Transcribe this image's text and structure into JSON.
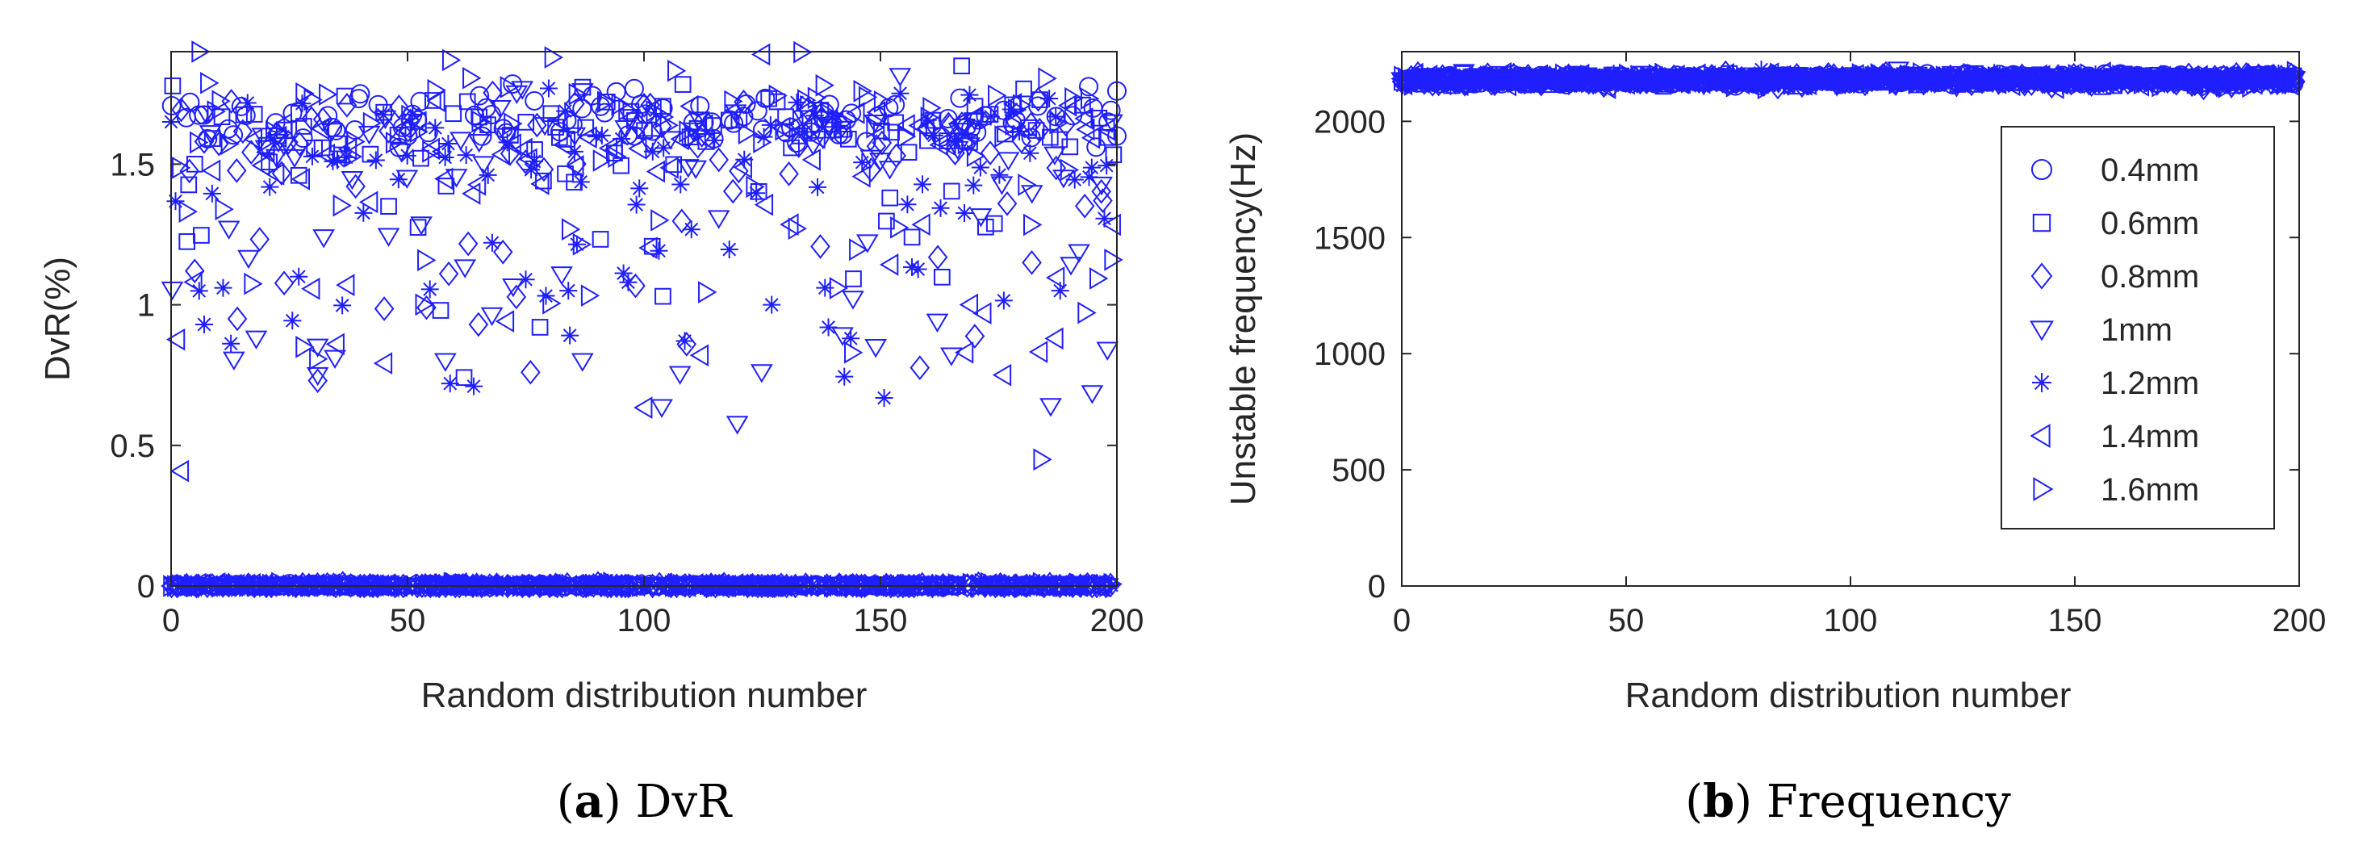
{
  "colors": {
    "marker": "#1f1fff",
    "axis": "#262626",
    "background": "#ffffff"
  },
  "charts": [
    {
      "caption": {
        "label": "a",
        "text": "DvR"
      },
      "chart_data": {
        "type": "scatter",
        "xlabel": "Random distribution number",
        "ylabel": "DvR(%)",
        "xlim": [
          0,
          200
        ],
        "ylim": [
          0,
          1.9
        ],
        "xticks": [
          0,
          50,
          100,
          150,
          200
        ],
        "yticks": [
          0,
          0.5,
          1,
          1.5
        ],
        "ytick_labels": [
          "0",
          "0.5",
          "1",
          "1.5"
        ],
        "grid": false,
        "legend": "none",
        "points_per_series": 200,
        "series": [
          {
            "name": "0.4mm",
            "marker": "circle",
            "clusters": [
              {
                "fraction": 0.45,
                "mean": 1.66,
                "sd": 0.05
              },
              {
                "fraction": 0.55,
                "mean": 0.0,
                "sd": 0.004
              }
            ],
            "sample_points": [
              [
                4,
                1.72
              ],
              [
                40,
                1.75
              ],
              [
                98,
                1.6
              ],
              [
                147,
                1.58
              ],
              [
                200,
                1.76
              ],
              [
                200,
                1.6
              ]
            ]
          },
          {
            "name": "0.6mm",
            "marker": "square",
            "clusters": [
              {
                "fraction": 0.38,
                "mean": 1.62,
                "sd": 0.07
              },
              {
                "fraction": 0.08,
                "mean": 1.25,
                "sd": 0.15
              },
              {
                "fraction": 0.54,
                "mean": 0.0,
                "sd": 0.004
              }
            ],
            "sample_points": [
              [
                5,
                1.5
              ],
              [
                27,
                1.46
              ],
              [
                46,
                1.35
              ],
              [
                57,
                0.98
              ],
              [
                78,
                0.92
              ],
              [
                104,
                1.03
              ],
              [
                152,
                1.38
              ]
            ]
          },
          {
            "name": "0.8mm",
            "marker": "diamond",
            "clusters": [
              {
                "fraction": 0.32,
                "mean": 1.6,
                "sd": 0.08
              },
              {
                "fraction": 0.13,
                "mean": 1.15,
                "sd": 0.22
              },
              {
                "fraction": 0.55,
                "mean": 0.0,
                "sd": 0.004
              }
            ],
            "sample_points": [
              [
                5,
                1.12
              ],
              [
                14,
                0.95
              ],
              [
                31,
                0.73
              ],
              [
                54,
                0.99
              ],
              [
                65,
                0.93
              ],
              [
                76,
                0.76
              ],
              [
                109,
                0.86
              ],
              [
                182,
                1.15
              ],
              [
                197,
                1.37
              ]
            ]
          },
          {
            "name": "1mm",
            "marker": "triangle-down",
            "clusters": [
              {
                "fraction": 0.3,
                "mean": 1.58,
                "sd": 0.1
              },
              {
                "fraction": 0.15,
                "mean": 1.05,
                "sd": 0.25
              },
              {
                "fraction": 0.55,
                "mean": 0.0,
                "sd": 0.004
              }
            ],
            "sample_points": [
              [
                18,
                0.88
              ],
              [
                31,
                0.75
              ],
              [
                58,
                0.8
              ],
              [
                87,
                0.8
              ],
              [
                149,
                0.85
              ],
              [
                165,
                0.82
              ],
              [
                186,
                0.64
              ],
              [
                198,
                0.84
              ]
            ]
          },
          {
            "name": "1.2mm",
            "marker": "asterisk",
            "clusters": [
              {
                "fraction": 0.3,
                "mean": 1.55,
                "sd": 0.12
              },
              {
                "fraction": 0.14,
                "mean": 1.05,
                "sd": 0.2
              },
              {
                "fraction": 0.56,
                "mean": 0.0,
                "sd": 0.004
              }
            ],
            "sample_points": [
              [
                7,
                0.93
              ],
              [
                11,
                1.06
              ],
              [
                27,
                1.1
              ],
              [
                59,
                0.72
              ],
              [
                64,
                0.71
              ],
              [
                75,
                1.09
              ],
              [
                84,
                1.05
              ],
              [
                127,
                1.0
              ],
              [
                139,
                0.92
              ],
              [
                188,
                1.05
              ]
            ]
          },
          {
            "name": "1.4mm",
            "marker": "triangle-left",
            "clusters": [
              {
                "fraction": 0.31,
                "mean": 1.6,
                "sd": 0.1
              },
              {
                "fraction": 0.14,
                "mean": 1.1,
                "sd": 0.22
              },
              {
                "fraction": 0.55,
                "mean": 0.0,
                "sd": 0.004
              }
            ],
            "sample_points": [
              [
                35,
                0.86
              ],
              [
                112,
                0.82
              ],
              [
                168,
                0.83
              ],
              [
                176,
                0.75
              ],
              [
                187,
                0.88
              ],
              [
                125,
                1.89
              ]
            ]
          },
          {
            "name": "1.6mm",
            "marker": "triangle-right",
            "clusters": [
              {
                "fraction": 0.32,
                "mean": 1.65,
                "sd": 0.1
              },
              {
                "fraction": 0.13,
                "mean": 1.12,
                "sd": 0.22
              },
              {
                "fraction": 0.55,
                "mean": 0.0,
                "sd": 0.004
              }
            ],
            "sample_points": [
              [
                6,
                1.9
              ],
              [
                59,
                1.87
              ],
              [
                28,
                0.85
              ],
              [
                144,
                0.83
              ],
              [
                184,
                0.45
              ],
              [
                199,
                1.16
              ]
            ]
          }
        ]
      }
    },
    {
      "caption": {
        "label": "b",
        "text": "Frequency"
      },
      "chart_data": {
        "type": "scatter",
        "xlabel": "Random distribution number",
        "ylabel": "Unstable frequency(Hz)",
        "xlim": [
          0,
          200
        ],
        "ylim": [
          0,
          2300
        ],
        "xticks": [
          0,
          50,
          100,
          150,
          200
        ],
        "yticks": [
          0,
          500,
          1000,
          1500,
          2000
        ],
        "ytick_labels": [
          "0",
          "500",
          "1000",
          "1500",
          "2000"
        ],
        "grid": false,
        "legend": "right",
        "points_per_series": 200,
        "series": [
          {
            "name": "0.4mm",
            "marker": "circle",
            "clusters": [
              {
                "fraction": 1.0,
                "mean": 2180,
                "sd": 12
              }
            ]
          },
          {
            "name": "0.6mm",
            "marker": "square",
            "clusters": [
              {
                "fraction": 1.0,
                "mean": 2180,
                "sd": 12
              }
            ]
          },
          {
            "name": "0.8mm",
            "marker": "diamond",
            "clusters": [
              {
                "fraction": 1.0,
                "mean": 2180,
                "sd": 12
              }
            ]
          },
          {
            "name": "1mm",
            "marker": "triangle-down",
            "clusters": [
              {
                "fraction": 1.0,
                "mean": 2180,
                "sd": 12
              }
            ]
          },
          {
            "name": "1.2mm",
            "marker": "asterisk",
            "clusters": [
              {
                "fraction": 1.0,
                "mean": 2180,
                "sd": 12
              }
            ]
          },
          {
            "name": "1.4mm",
            "marker": "triangle-left",
            "clusters": [
              {
                "fraction": 1.0,
                "mean": 2180,
                "sd": 12
              }
            ]
          },
          {
            "name": "1.6mm",
            "marker": "triangle-right",
            "clusters": [
              {
                "fraction": 1.0,
                "mean": 2180,
                "sd": 12
              }
            ]
          }
        ]
      }
    }
  ]
}
